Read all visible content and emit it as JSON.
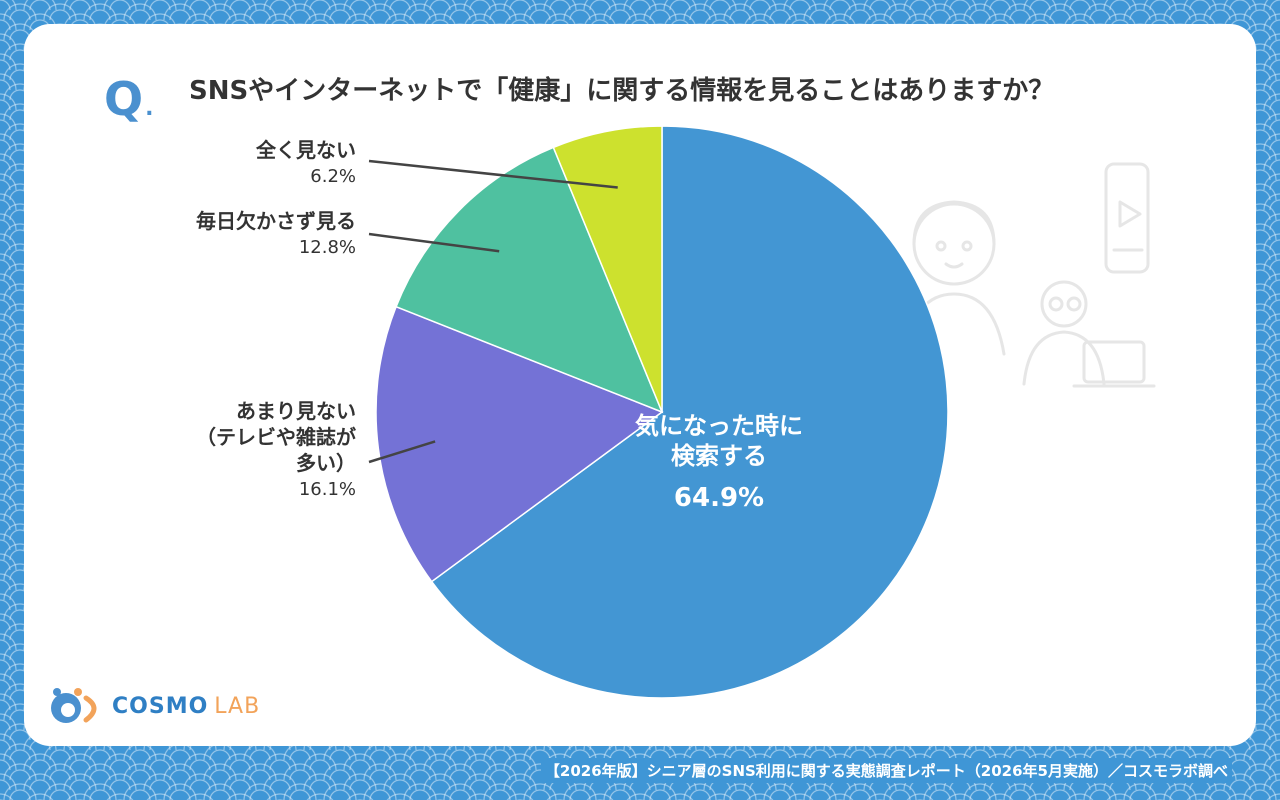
{
  "question": {
    "mark": "Q",
    "dot": ".",
    "text": "SNSやインターネットで「健康」に関する情報を見ることはありますか？"
  },
  "chart_data": {
    "type": "pie",
    "start_angle_deg": 0,
    "direction": "clockwise",
    "slices": [
      {
        "label": "気になった時に\n検索する",
        "line1": "気になった時に",
        "line2": "検索する",
        "value": 64.9,
        "display": "64.9%",
        "color": "#4396d3"
      },
      {
        "label": "あまり見ない\n（テレビや雑誌が\n多い）",
        "line1": "あまり見ない",
        "line2": "（テレビや雑誌が",
        "line3": "多い）",
        "value": 16.1,
        "display": "16.1%",
        "color": "#7472d6"
      },
      {
        "label": "毎日欠かさず見る",
        "line1": "毎日欠かさず見る",
        "value": 12.8,
        "display": "12.8%",
        "color": "#4fc1a0"
      },
      {
        "label": "全く見ない",
        "line1": "全く見ない",
        "value": 6.2,
        "display": "6.2%",
        "color": "#cde12e"
      }
    ]
  },
  "logo": {
    "name": "COSMO",
    "suffix": "LAB"
  },
  "footer": {
    "source": "【2026年版】シニア層のSNS利用に関する実態調査レポート（2026年5月実施）／コスモラボ調べ"
  },
  "colors": {
    "background": "#3f96d6",
    "card": "#ffffff",
    "text": "#333333",
    "accent": "#4a90cf"
  },
  "icons": [
    "seniors-illustration",
    "smartphone-video-icon",
    "laptop-icon",
    "cosmo-lab-logo-icon"
  ]
}
